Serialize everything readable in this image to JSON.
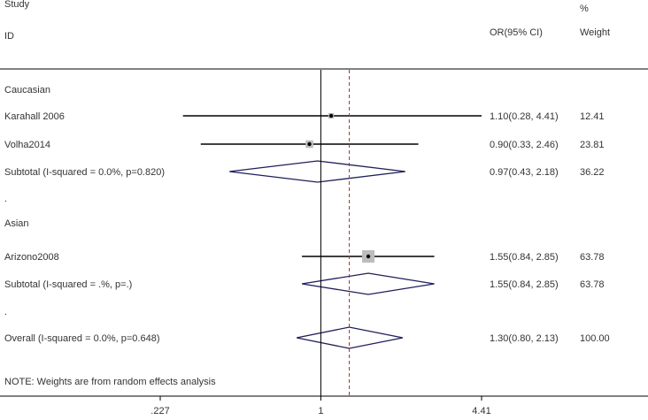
{
  "chart_data": {
    "type": "forest",
    "header": {
      "study_label": "Study",
      "id_label": "ID",
      "or_label": "OR(95% CI)",
      "pct_label": "%",
      "weight_label": "Weight"
    },
    "x_scale": "log",
    "xlim": [
      0.227,
      4.41
    ],
    "x_ticks": [
      {
        "value": 0.227,
        "label": ".227"
      },
      {
        "value": 1,
        "label": "1"
      },
      {
        "value": 4.41,
        "label": "4.41"
      }
    ],
    "null_line": 1,
    "overall_line": 1.3,
    "rows": [
      {
        "kind": "group",
        "label": "Caucasian"
      },
      {
        "kind": "study",
        "label": "Karahall 2006",
        "or": 1.1,
        "lower": 0.28,
        "upper": 4.41,
        "ci_text": "1.10(0.28, 4.41)",
        "weight": "12.41"
      },
      {
        "kind": "study",
        "label": "Volha2014",
        "or": 0.9,
        "lower": 0.33,
        "upper": 2.46,
        "ci_text": "0.90(0.33, 2.46)",
        "weight": "23.81"
      },
      {
        "kind": "subtotal",
        "label": "Subtotal  (I-squared = 0.0%, p=0.820)",
        "or": 0.97,
        "lower": 0.43,
        "upper": 2.18,
        "ci_text": "0.97(0.43, 2.18)",
        "weight": "36.22"
      },
      {
        "kind": "spacer",
        "label": "."
      },
      {
        "kind": "group",
        "label": "Asian"
      },
      {
        "kind": "study",
        "label": "Arizono2008",
        "or": 1.55,
        "lower": 0.84,
        "upper": 2.85,
        "ci_text": "1.55(0.84, 2.85)",
        "weight": "63.78"
      },
      {
        "kind": "subtotal",
        "label": "Subtotal  (I-squared = .%, p=.)",
        "or": 1.55,
        "lower": 0.84,
        "upper": 2.85,
        "ci_text": "1.55(0.84, 2.85)",
        "weight": "63.78"
      },
      {
        "kind": "spacer",
        "label": "."
      },
      {
        "kind": "overall",
        "label": "Overall  (I-squared = 0.0%, p=0.648)",
        "or": 1.3,
        "lower": 0.8,
        "upper": 2.13,
        "ci_text": "1.30(0.80, 2.13)",
        "weight": "100.00"
      }
    ],
    "note": "NOTE: Weights are from random effects analysis",
    "colors": {
      "text": "#333333",
      "line": "#000000",
      "diamond": "#1f1f5a",
      "overall_line": "#b03030",
      "box_fill": "#bdbdbd"
    }
  }
}
